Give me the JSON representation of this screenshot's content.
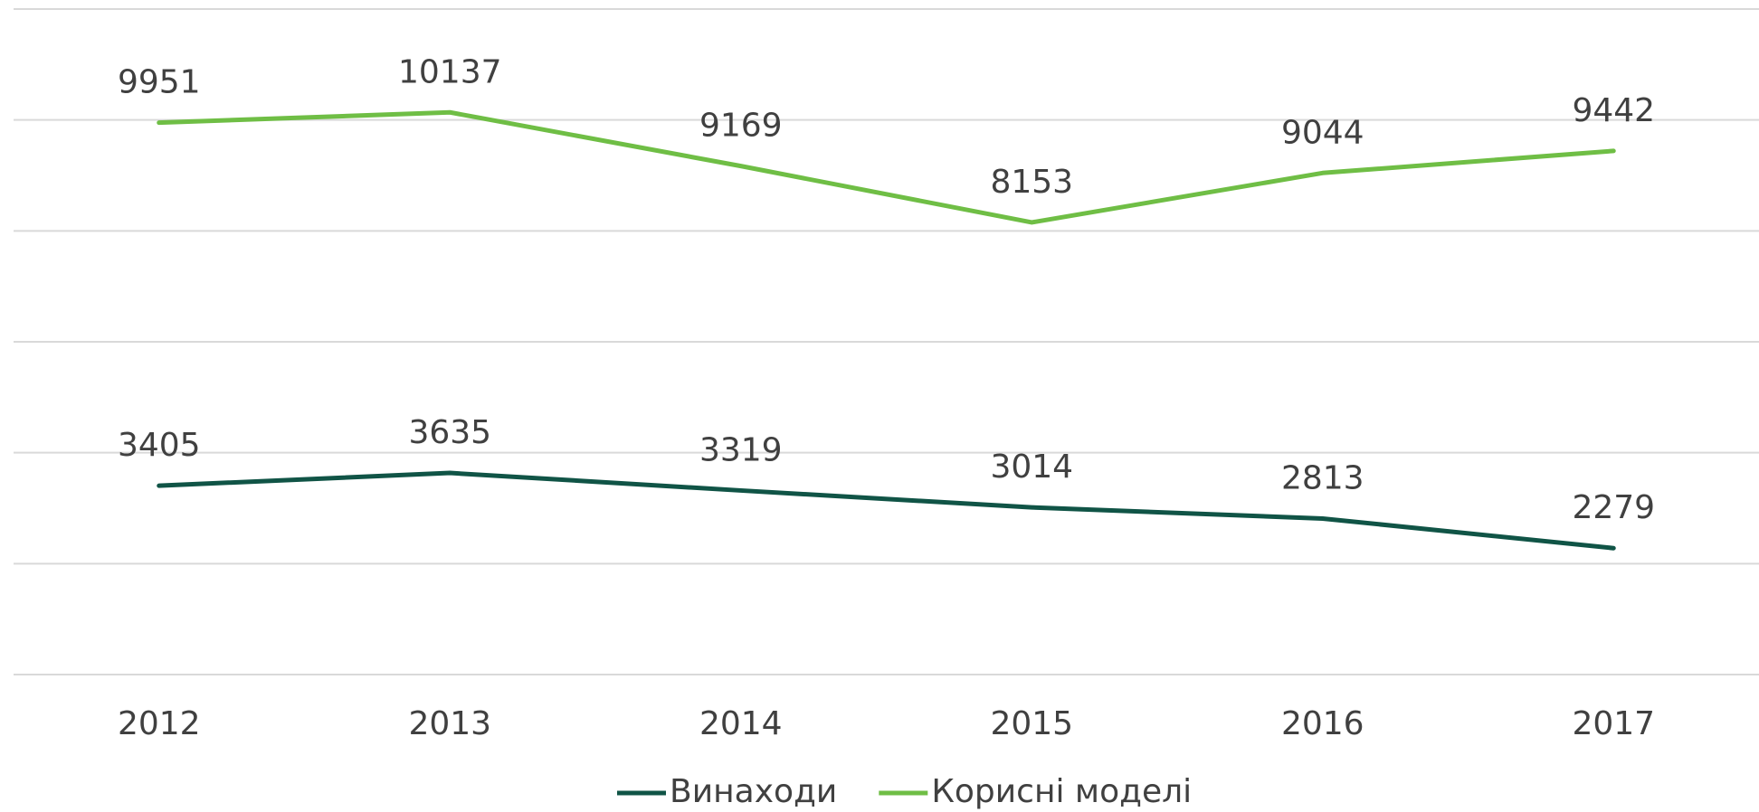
{
  "chart_data": {
    "type": "line",
    "categories": [
      "2012",
      "2013",
      "2014",
      "2015",
      "2016",
      "2017"
    ],
    "series": [
      {
        "name": "Винаходи",
        "color": "#105446",
        "values": [
          3405,
          3635,
          3319,
          3014,
          2813,
          2279
        ]
      },
      {
        "name": "Корисні моделі",
        "color": "#6fbe45",
        "values": [
          9951,
          10137,
          9169,
          8153,
          9044,
          9442
        ]
      }
    ],
    "ylim": [
      0,
      12000
    ],
    "yticks": [
      0,
      2000,
      4000,
      6000,
      8000,
      10000,
      12000
    ],
    "grid": true,
    "legend": "bottom"
  }
}
